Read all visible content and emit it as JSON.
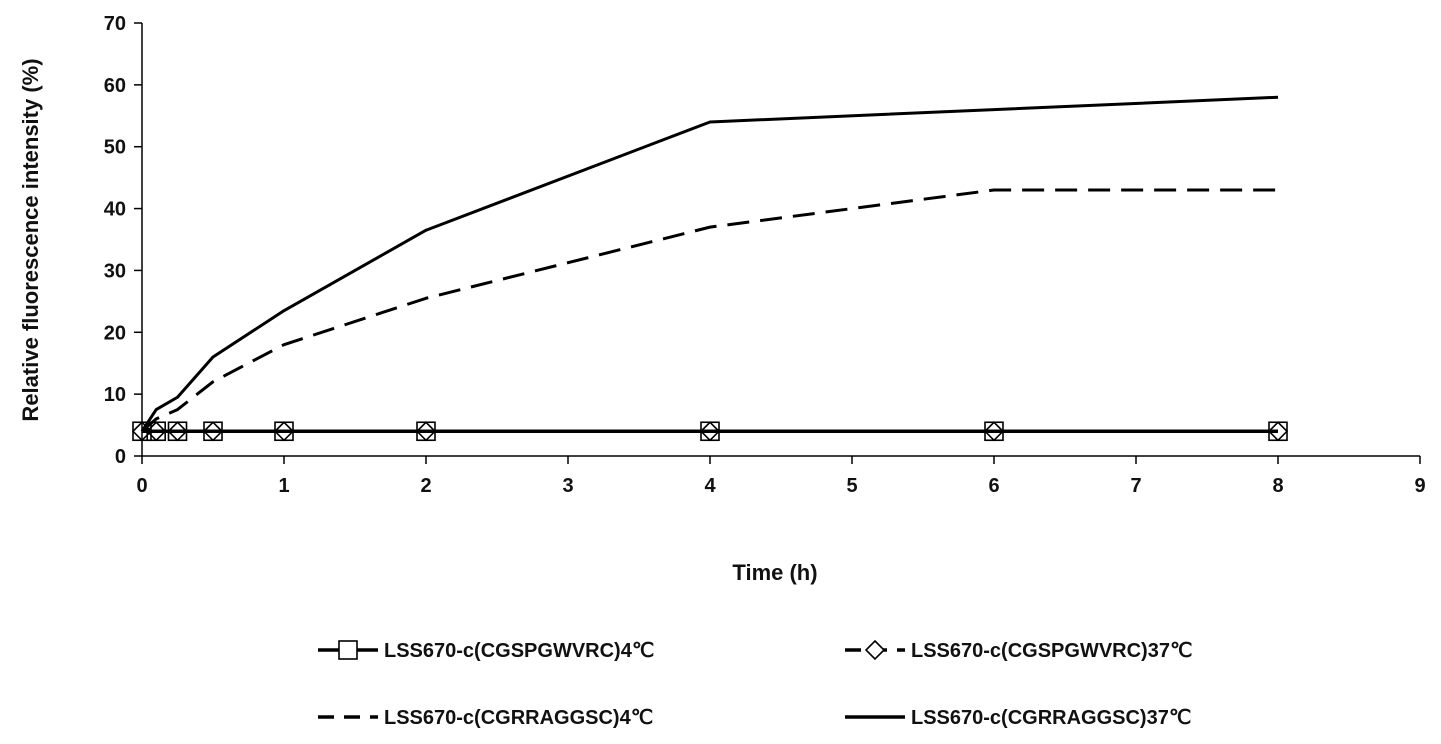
{
  "chart_data": {
    "type": "line",
    "xlabel": "Time (h)",
    "ylabel": "Relative fluorescence intensity (%)",
    "xlim": [
      0,
      9
    ],
    "ylim": [
      0,
      70
    ],
    "x_ticks": [
      0,
      1,
      2,
      3,
      4,
      5,
      6,
      7,
      8,
      9
    ],
    "y_ticks": [
      0,
      10,
      20,
      30,
      40,
      50,
      60,
      70
    ],
    "grid": false,
    "legend_position": "bottom",
    "series": [
      {
        "name": "LSS670-c(CGSPGWVRC)4℃",
        "style": "solid",
        "marker": "square",
        "color": "#000000",
        "x": [
          0,
          0.1,
          0.25,
          0.5,
          1,
          2,
          4,
          6,
          8
        ],
        "y": [
          4,
          4,
          4,
          4,
          4,
          4,
          4,
          4,
          4
        ]
      },
      {
        "name": "LSS670-c(CGSPGWVRC)37℃",
        "style": "dashed",
        "marker": "diamond",
        "color": "#000000",
        "x": [
          0,
          0.1,
          0.25,
          0.5,
          1,
          2,
          4,
          6,
          8
        ],
        "y": [
          4,
          4,
          4,
          4,
          4,
          4,
          4,
          4,
          4
        ]
      },
      {
        "name": "LSS670-c(CGRRAGGSC)4℃",
        "style": "dashed",
        "marker": "none",
        "color": "#000000",
        "x": [
          0,
          0.1,
          0.25,
          0.5,
          1,
          2,
          4,
          6,
          8
        ],
        "y": [
          4,
          6,
          7.5,
          12,
          18,
          25.5,
          37,
          43,
          43
        ]
      },
      {
        "name": "LSS670-c(CGRRAGGSC)37℃",
        "style": "solid",
        "marker": "none",
        "color": "#000000",
        "x": [
          0,
          0.1,
          0.25,
          0.5,
          1,
          2,
          4,
          6,
          8
        ],
        "y": [
          4,
          7.5,
          9.5,
          16,
          23.5,
          36.5,
          54,
          56,
          58
        ]
      }
    ]
  }
}
